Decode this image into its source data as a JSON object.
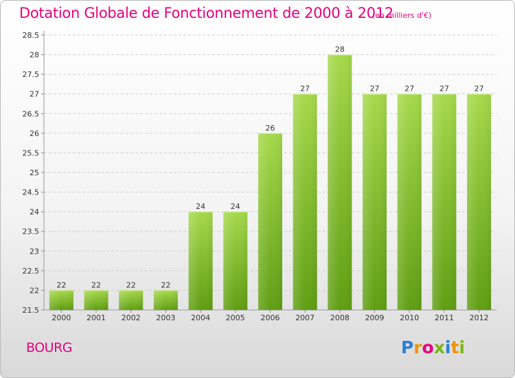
{
  "header": {
    "title": "Dotation Globale de Fonctionnement de 2000 à 2012",
    "unit": "(en milliers d'€)"
  },
  "footer": {
    "commune": "BOURG",
    "logo_letters": [
      "P",
      "r",
      "o",
      "x",
      "i",
      "t",
      "i"
    ]
  },
  "colors": {
    "title": "#e6007e",
    "bar_light": "#a6d94b",
    "bar_dark": "#5f9e12",
    "grid": "#cfcfcf"
  },
  "chart_data": {
    "type": "bar",
    "title": "Dotation Globale de Fonctionnement de 2000 à 2012",
    "categories": [
      "2000",
      "2001",
      "2002",
      "2003",
      "2004",
      "2005",
      "2006",
      "2007",
      "2008",
      "2009",
      "2010",
      "2011",
      "2012"
    ],
    "values": [
      22,
      22,
      22,
      22,
      24,
      24,
      26,
      27,
      28,
      27,
      27,
      27,
      27
    ],
    "ylim": [
      21.5,
      28.5
    ],
    "yticks": [
      "21.5",
      "22",
      "22.5",
      "23",
      "23.5",
      "24",
      "24.5",
      "25",
      "25.5",
      "26",
      "26.5",
      "27",
      "27.5",
      "28",
      "28.5"
    ],
    "grid": true,
    "xlabel": "",
    "ylabel": ""
  }
}
